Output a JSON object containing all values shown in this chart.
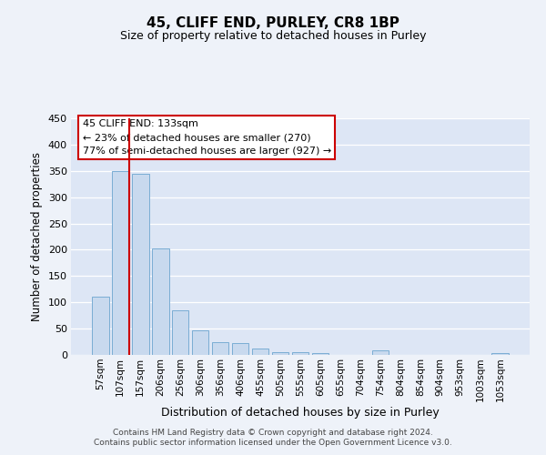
{
  "title": "45, CLIFF END, PURLEY, CR8 1BP",
  "subtitle": "Size of property relative to detached houses in Purley",
  "xlabel": "Distribution of detached houses by size in Purley",
  "ylabel": "Number of detached properties",
  "bar_labels": [
    "57sqm",
    "107sqm",
    "157sqm",
    "206sqm",
    "256sqm",
    "306sqm",
    "356sqm",
    "406sqm",
    "455sqm",
    "505sqm",
    "555sqm",
    "605sqm",
    "655sqm",
    "704sqm",
    "754sqm",
    "804sqm",
    "854sqm",
    "904sqm",
    "953sqm",
    "1003sqm",
    "1053sqm"
  ],
  "bar_values": [
    110,
    350,
    345,
    203,
    85,
    47,
    25,
    22,
    12,
    5,
    5,
    3,
    0,
    0,
    8,
    0,
    0,
    0,
    0,
    0,
    3
  ],
  "bar_color": "#c8d9ee",
  "bar_edge_color": "#7aadd4",
  "vline_color": "#cc0000",
  "annotation_text": "45 CLIFF END: 133sqm\n← 23% of detached houses are smaller (270)\n77% of semi-detached houses are larger (927) →",
  "annotation_box_color": "white",
  "annotation_box_edge": "#cc0000",
  "ylim": [
    0,
    450
  ],
  "yticks": [
    0,
    50,
    100,
    150,
    200,
    250,
    300,
    350,
    400,
    450
  ],
  "footer_line1": "Contains HM Land Registry data © Crown copyright and database right 2024.",
  "footer_line2": "Contains public sector information licensed under the Open Government Licence v3.0.",
  "bg_color": "#eef2f9",
  "plot_bg_color": "#dde6f5",
  "grid_color": "#ffffff"
}
